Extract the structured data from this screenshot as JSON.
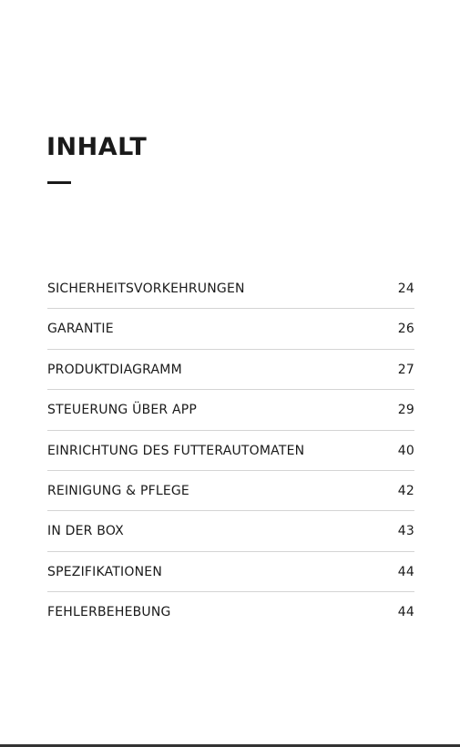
{
  "header": {
    "title": "INHALT"
  },
  "toc": {
    "entries": [
      {
        "label": "SICHERHEITSVORKEHRUNGEN",
        "page": 24
      },
      {
        "label": "GARANTIE",
        "page": 26
      },
      {
        "label": "PRODUKTDIAGRAMM",
        "page": 27
      },
      {
        "label": "STEUERUNG ÜBER APP",
        "page": 29
      },
      {
        "label": "EINRICHTUNG DES FUTTERAUTOMATEN",
        "page": 40
      },
      {
        "label": "REINIGUNG & PFLEGE",
        "page": 42
      },
      {
        "label": "IN DER BOX",
        "page": 43
      },
      {
        "label": "SPEZIFIKATIONEN",
        "page": 44
      },
      {
        "label": "FEHLERBEHEBUNG",
        "page": 44
      }
    ]
  }
}
